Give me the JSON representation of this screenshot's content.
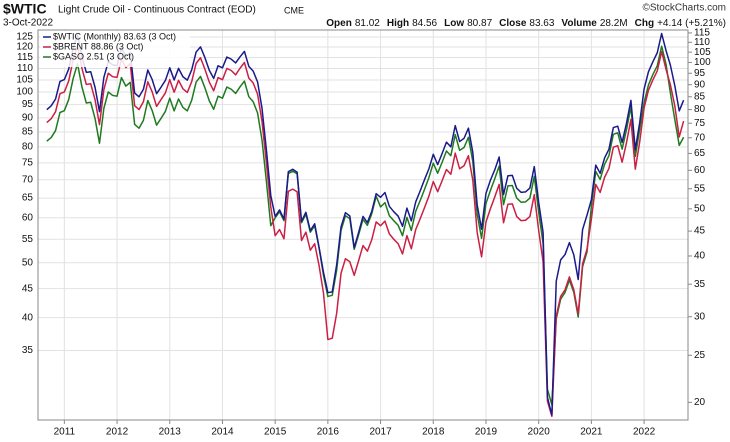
{
  "chart_data": {
    "type": "line",
    "title": "$WTIC",
    "subtitle": "Light Crude Oil - Continuous Contract (EOD)",
    "exchange": "CME",
    "date": "3-Oct-2022",
    "credit": "©StockCharts.com",
    "quote": [
      {
        "label": "Open",
        "value": "81.02"
      },
      {
        "label": "High",
        "value": "84.56"
      },
      {
        "label": "Low",
        "value": "80.87"
      },
      {
        "label": "Close",
        "value": "83.63"
      },
      {
        "label": "Volume",
        "value": "28.2M"
      },
      {
        "label": "Chg",
        "value": "+4.14 (+5.21%)"
      }
    ],
    "log_scale": true,
    "grid": true,
    "legend": "top-left",
    "x": [
      "2010-09",
      "2010-10",
      "2010-11",
      "2010-12",
      "2011-01",
      "2011-02",
      "2011-03",
      "2011-04",
      "2011-05",
      "2011-06",
      "2011-07",
      "2011-08",
      "2011-09",
      "2011-10",
      "2011-11",
      "2011-12",
      "2012-01",
      "2012-02",
      "2012-03",
      "2012-04",
      "2012-05",
      "2012-06",
      "2012-07",
      "2012-08",
      "2012-09",
      "2012-10",
      "2012-11",
      "2012-12",
      "2013-01",
      "2013-02",
      "2013-03",
      "2013-04",
      "2013-05",
      "2013-06",
      "2013-07",
      "2013-08",
      "2013-09",
      "2013-10",
      "2013-11",
      "2013-12",
      "2014-01",
      "2014-02",
      "2014-03",
      "2014-04",
      "2014-05",
      "2014-06",
      "2014-07",
      "2014-08",
      "2014-09",
      "2014-10",
      "2014-11",
      "2014-12",
      "2015-01",
      "2015-02",
      "2015-03",
      "2015-04",
      "2015-05",
      "2015-06",
      "2015-07",
      "2015-08",
      "2015-09",
      "2015-10",
      "2015-11",
      "2015-12",
      "2016-01",
      "2016-02",
      "2016-03",
      "2016-04",
      "2016-05",
      "2016-06",
      "2016-07",
      "2016-08",
      "2016-09",
      "2016-10",
      "2016-11",
      "2016-12",
      "2017-01",
      "2017-02",
      "2017-03",
      "2017-04",
      "2017-05",
      "2017-06",
      "2017-07",
      "2017-08",
      "2017-09",
      "2017-10",
      "2017-11",
      "2017-12",
      "2018-01",
      "2018-02",
      "2018-03",
      "2018-04",
      "2018-05",
      "2018-06",
      "2018-07",
      "2018-08",
      "2018-09",
      "2018-10",
      "2018-11",
      "2018-12",
      "2019-01",
      "2019-02",
      "2019-03",
      "2019-04",
      "2019-05",
      "2019-06",
      "2019-07",
      "2019-08",
      "2019-09",
      "2019-10",
      "2019-11",
      "2019-12",
      "2020-01",
      "2020-02",
      "2020-03",
      "2020-04",
      "2020-05",
      "2020-06",
      "2020-07",
      "2020-08",
      "2020-09",
      "2020-10",
      "2020-11",
      "2020-12",
      "2021-01",
      "2021-02",
      "2021-03",
      "2021-04",
      "2021-05",
      "2021-06",
      "2021-07",
      "2021-08",
      "2021-09",
      "2021-10",
      "2021-11",
      "2021-12",
      "2022-01",
      "2022-02",
      "2022-03",
      "2022-04",
      "2022-05",
      "2022-06",
      "2022-07",
      "2022-08",
      "2022-09",
      "2022-10"
    ],
    "xlim": [
      "2010-07",
      "2022-11"
    ],
    "xticks": [
      2011,
      2012,
      2013,
      2014,
      2015,
      2016,
      2017,
      2018,
      2019,
      2020,
      2021,
      2022
    ],
    "ylim": [
      26.4,
      128.6
    ],
    "yticks": [
      35,
      40,
      45,
      50,
      55,
      60,
      65,
      70,
      75,
      80,
      85,
      90,
      95,
      100,
      105,
      110,
      115,
      120,
      125
    ],
    "y2lim": [
      18.4,
      116.6
    ],
    "y2ticks": [
      20,
      25,
      30,
      35,
      40,
      45,
      50,
      55,
      60,
      65,
      70,
      75,
      80,
      85,
      90,
      95,
      100,
      105,
      110,
      115
    ],
    "series": [
      {
        "name": "$GASO 2.51 (3 Oct)",
        "color": "#1f7a1f",
        "values": [
          81.9,
          83.1,
          85.5,
          92.0,
          92.7,
          97.0,
          105.6,
          112.1,
          102.1,
          95.6,
          95.9,
          89.7,
          81.2,
          93.6,
          100.0,
          98.6,
          98.3,
          106.0,
          102.4,
          104.0,
          87.7,
          86.3,
          89.1,
          96.6,
          92.7,
          87.4,
          89.8,
          92.4,
          97.5,
          92.6,
          97.2,
          93.9,
          92.6,
          96.7,
          104.1,
          106.5,
          101.7,
          96.5,
          93.2,
          98.3,
          97.5,
          102.0,
          101.1,
          99.4,
          102.1,
          104.5,
          98.1,
          96.1,
          91.8,
          82.3,
          69.6,
          58.1,
          60.0,
          61.5,
          59.3,
          71.8,
          72.5,
          71.7,
          58.8,
          60.9,
          56.6,
          58.1,
          53.1,
          47.5,
          43.6,
          43.8,
          48.5,
          57.0,
          60.5,
          59.8,
          52.8,
          56.0,
          59.6,
          58.2,
          61.0,
          65.5,
          62.7,
          63.8,
          60.5,
          59.3,
          58.2,
          55.8,
          60.1,
          57.0,
          61.6,
          64.3,
          67.3,
          70.6,
          74.9,
          71.9,
          75.1,
          78.7,
          77.2,
          84.1,
          78.9,
          79.8,
          83.2,
          75.4,
          60.9,
          55.2,
          63.6,
          67.0,
          70.3,
          74.0,
          63.3,
          68.3,
          68.4,
          65.0,
          63.9,
          64.0,
          65.0,
          71.0,
          61.4,
          54.1,
          29.9,
          28.1,
          39.8,
          43.1,
          44.3,
          46.6,
          44.3,
          40.1,
          49.2,
          52.2,
          62.9,
          72.4,
          70.1,
          74.5,
          77.2,
          84.2,
          84.7,
          79.3,
          85.8,
          94.2,
          77.0,
          85.9,
          95.8,
          102.9,
          107.3,
          111.2,
          120.4,
          111.9,
          99.5,
          89.4,
          80.5,
          83.2
        ]
      },
      {
        "name": "$BRENT 88.86 (3 Oct)",
        "color": "#cc1f45",
        "values": [
          88.3,
          89.7,
          92.3,
          99.3,
          100.0,
          104.6,
          114.0,
          120.9,
          110.1,
          103.1,
          103.4,
          96.8,
          87.6,
          101.0,
          107.9,
          106.4,
          106.1,
          114.3,
          110.4,
          112.2,
          94.6,
          93.1,
          96.1,
          104.2,
          100.0,
          94.3,
          96.9,
          99.6,
          105.1,
          99.9,
          104.8,
          101.3,
          99.8,
          104.3,
          112.3,
          114.9,
          109.7,
          104.1,
          100.5,
          106.0,
          105.1,
          110.0,
          109.1,
          107.2,
          110.1,
          112.7,
          105.8,
          103.7,
          99.1,
          88.8,
          75.1,
          62.7,
          55.8,
          57.2,
          55.1,
          66.8,
          67.4,
          66.7,
          54.7,
          56.6,
          52.6,
          54.0,
          49.4,
          44.2,
          36.6,
          36.8,
          40.7,
          47.9,
          50.8,
          50.2,
          47.5,
          50.4,
          53.6,
          52.4,
          54.9,
          59.0,
          58.1,
          59.2,
          56.2,
          55.0,
          54.0,
          51.8,
          55.8,
          52.9,
          57.2,
          59.7,
          62.5,
          65.5,
          69.5,
          66.7,
          69.7,
          73.0,
          71.6,
          78.0,
          73.2,
          74.1,
          77.2,
          69.9,
          56.5,
          51.2,
          59.0,
          62.2,
          65.3,
          68.7,
          58.8,
          63.4,
          63.5,
          60.3,
          59.3,
          59.4,
          60.3,
          65.9,
          57.0,
          50.2,
          28.5,
          26.8,
          40.3,
          43.6,
          44.8,
          47.2,
          44.8,
          40.6,
          49.8,
          52.8,
          59.7,
          68.7,
          66.5,
          70.7,
          73.3,
          79.9,
          80.4,
          75.2,
          81.4,
          89.4,
          73.1,
          81.6,
          93.7,
          100.7,
          105.0,
          108.9,
          117.8,
          109.6,
          102.9,
          94.5,
          83.3,
          88.86
        ]
      },
      {
        "name": "$WTIC (Monthly) 83.63 (3 Oct)",
        "color": "#1a1a8c",
        "axis": "y2",
        "values": [
          79.97,
          81.43,
          84.11,
          91.38,
          92.19,
          96.97,
          106.72,
          113.93,
          102.7,
          95.42,
          95.7,
          88.81,
          79.2,
          93.19,
          100.36,
          98.83,
          98.48,
          107.07,
          103.02,
          104.87,
          86.53,
          84.96,
          88.06,
          96.47,
          92.19,
          86.24,
          88.91,
          91.82,
          97.49,
          92.05,
          97.23,
          93.46,
          91.97,
          96.56,
          105.03,
          107.65,
          102.33,
          96.38,
          92.72,
          98.42,
          97.49,
          102.59,
          101.58,
          99.74,
          102.71,
          105.37,
          98.17,
          95.96,
          91.16,
          80.54,
          66.15,
          53.27,
          48.24,
          49.76,
          47.6,
          59.63,
          60.3,
          59.47,
          47.12,
          49.2,
          45.09,
          46.59,
          41.65,
          37.04,
          33.62,
          33.75,
          38.34,
          45.92,
          49.1,
          48.33,
          41.6,
          44.7,
          48.24,
          46.86,
          49.44,
          53.72,
          52.81,
          54.01,
          50.6,
          49.33,
          48.32,
          46.04,
          50.17,
          47.23,
          51.67,
          54.38,
          57.4,
          60.42,
          64.73,
          61.64,
          64.94,
          68.57,
          67.04,
          74.15,
          68.76,
          69.8,
          73.25,
          65.31,
          50.93,
          45.41,
          53.79,
          57.22,
          60.14,
          63.91,
          53.5,
          58.47,
          58.58,
          55.1,
          54.07,
          54.18,
          55.17,
          61.06,
          51.56,
          44.76,
          20.48,
          18.84,
          35.49,
          39.27,
          40.27,
          42.61,
          40.22,
          35.79,
          45.34,
          48.52,
          52.2,
          61.5,
          59.16,
          63.58,
          66.32,
          73.47,
          73.95,
          68.5,
          75.03,
          83.57,
          66.18,
          75.21,
          88.15,
          95.72,
          100.28,
          104.69,
          114.67,
          105.76,
          98.62,
          89.55,
          79.49,
          83.63
        ]
      }
    ]
  }
}
